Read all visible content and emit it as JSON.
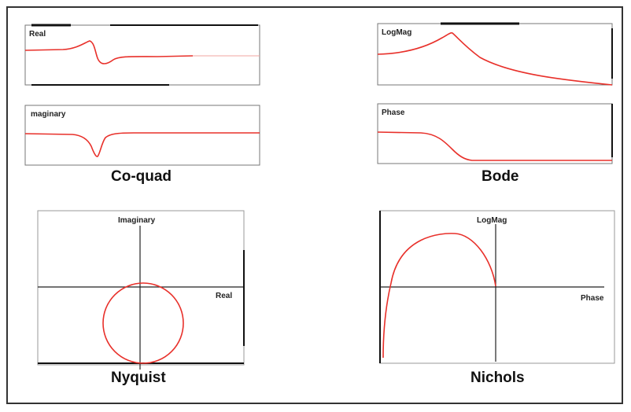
{
  "colors": {
    "curve": "#e8302a",
    "axis": "#222222",
    "frame": "#333333",
    "background": "#ffffff"
  },
  "diagram": {
    "panels": {
      "coquad_real": {
        "label": "Real"
      },
      "coquad_imag": {
        "label": "maginary"
      },
      "bode_logmag": {
        "label": "LogMag"
      },
      "bode_phase": {
        "label": "Phase"
      },
      "nyquist": {
        "y_label": "Imaginary",
        "x_label": "Real"
      },
      "nichols": {
        "y_label": "LogMag",
        "x_label": "Phase"
      }
    },
    "captions": {
      "coquad": "Co-quad",
      "bode": "Bode",
      "nyquist": "Nyquist",
      "nichols": "Nichols"
    }
  }
}
